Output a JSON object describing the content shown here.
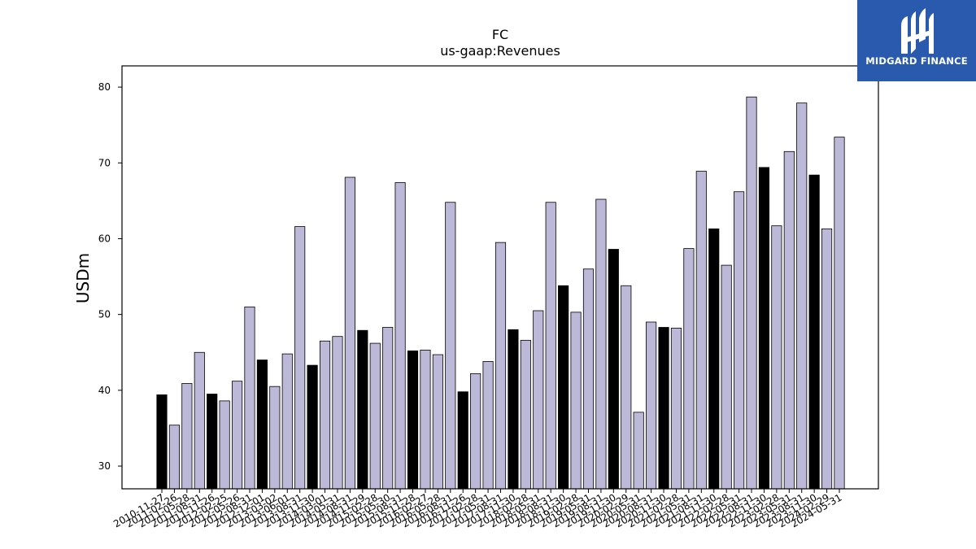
{
  "chart_data": {
    "type": "bar",
    "title": "FC",
    "subtitle": "us-gaap:Revenues",
    "xlabel": "",
    "ylabel": "USDm",
    "ylim": [
      27,
      82.8
    ],
    "yticks": [
      30,
      40,
      50,
      60,
      70,
      80
    ],
    "grid": false,
    "legend": "none",
    "colors": {
      "bar": "#bcb8d8",
      "highlight": "#000000",
      "edge": "#000000"
    },
    "categories": [
      "2010-11-27",
      "2011-02-26",
      "2011-05-28",
      "2011-08-31",
      "2011-11-26",
      "2012-02-25",
      "2012-05-26",
      "2012-08-31",
      "2012-12-01",
      "2013-03-02",
      "2013-06-01",
      "2013-08-31",
      "2013-11-30",
      "2014-03-01",
      "2014-05-31",
      "2014-08-31",
      "2014-11-29",
      "2015-02-28",
      "2015-05-30",
      "2015-08-31",
      "2015-11-28",
      "2016-02-27",
      "2016-05-28",
      "2016-08-31",
      "2016-11-26",
      "2017-02-28",
      "2017-05-31",
      "2017-08-31",
      "2017-11-30",
      "2018-02-28",
      "2018-05-31",
      "2018-08-31",
      "2018-11-30",
      "2019-02-28",
      "2019-05-31",
      "2019-08-31",
      "2019-11-30",
      "2020-02-29",
      "2020-05-31",
      "2020-08-31",
      "2020-11-30",
      "2021-02-28",
      "2021-05-31",
      "2021-08-31",
      "2021-11-30",
      "2022-02-28",
      "2022-05-31",
      "2022-08-31",
      "2022-11-30",
      "2023-02-28",
      "2023-05-31",
      "2023-08-31",
      "2023-11-30",
      "2024-02-29",
      "2024-05-31"
    ],
    "values": [
      39.4,
      35.4,
      40.9,
      45.0,
      39.5,
      38.6,
      41.2,
      51.0,
      44.0,
      40.5,
      44.8,
      61.6,
      43.3,
      46.5,
      47.1,
      68.1,
      47.9,
      46.2,
      48.3,
      67.4,
      45.2,
      45.3,
      44.7,
      64.8,
      39.8,
      42.2,
      43.8,
      59.5,
      48.0,
      46.6,
      50.5,
      64.8,
      53.8,
      50.3,
      56.0,
      65.2,
      58.6,
      53.8,
      37.1,
      49.0,
      48.3,
      48.2,
      58.7,
      68.9,
      61.3,
      56.5,
      66.2,
      78.7,
      69.4,
      61.7,
      71.5,
      77.9,
      68.4,
      61.3,
      73.4
    ],
    "highlight_indices": [
      0,
      4,
      8,
      12,
      16,
      20,
      24,
      28,
      32,
      36,
      40,
      44,
      48,
      52
    ]
  },
  "logo": {
    "text": "MIDGARD FINANCE",
    "icon": "midgard-logo-icon"
  }
}
